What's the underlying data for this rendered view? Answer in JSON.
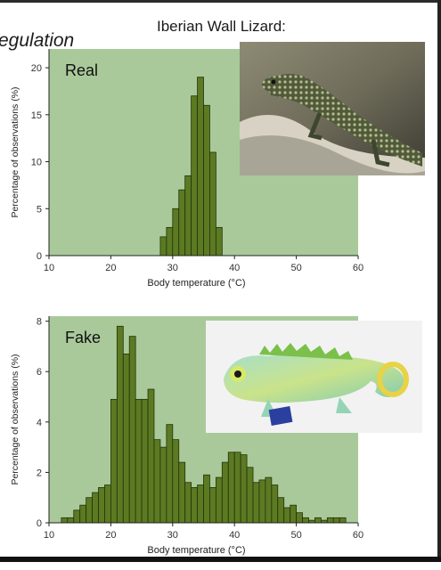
{
  "slide": {
    "title_fragment": "egulation",
    "lizard_caption": "Iberian Wall Lizard:"
  },
  "colors": {
    "panel_bg": "#a9c99a",
    "bar_fill": "#5c7a22",
    "bar_stroke": "#22330a"
  },
  "chart_data": [
    {
      "type": "bar",
      "annotation": "Real",
      "xlabel": "Body temperature (°C)",
      "ylabel": "Percentage of observations (%)",
      "xlim": [
        10,
        60
      ],
      "ylim": [
        0,
        22
      ],
      "xticks": [
        10,
        20,
        30,
        40,
        50,
        60
      ],
      "yticks": [
        0,
        5,
        10,
        15,
        20
      ],
      "bin_width": 1,
      "x": [
        28,
        29,
        30,
        31,
        32,
        33,
        34,
        35,
        36,
        37
      ],
      "values": [
        2,
        3,
        5,
        7,
        8.5,
        17,
        19,
        16,
        11,
        3
      ]
    },
    {
      "type": "bar",
      "annotation": "Fake",
      "xlabel": "Body temperature (°C)",
      "ylabel": "Percentage of observations (%)",
      "xlim": [
        10,
        60
      ],
      "ylim": [
        0,
        8.2
      ],
      "xticks": [
        10,
        20,
        30,
        40,
        50,
        60
      ],
      "yticks": [
        0,
        2,
        4,
        6,
        8
      ],
      "bin_width": 1,
      "x": [
        12,
        13,
        14,
        15,
        16,
        17,
        18,
        19,
        20,
        21,
        22,
        23,
        24,
        25,
        26,
        27,
        28,
        29,
        30,
        31,
        32,
        33,
        34,
        35,
        36,
        37,
        38,
        39,
        40,
        41,
        42,
        43,
        44,
        45,
        46,
        47,
        48,
        49,
        50,
        51,
        52,
        53,
        54,
        55,
        56,
        57
      ],
      "values": [
        0.2,
        0.2,
        0.5,
        0.7,
        1.0,
        1.2,
        1.4,
        1.5,
        4.9,
        7.8,
        6.7,
        7.4,
        4.9,
        4.9,
        5.3,
        3.3,
        3.0,
        3.9,
        3.3,
        2.4,
        1.6,
        1.4,
        1.5,
        1.9,
        1.4,
        1.8,
        2.4,
        2.8,
        2.8,
        2.7,
        2.2,
        1.6,
        1.7,
        1.8,
        1.5,
        1.0,
        0.6,
        0.7,
        0.4,
        0.2,
        0.1,
        0.2,
        0.1,
        0.2,
        0.2,
        0.2
      ]
    }
  ]
}
